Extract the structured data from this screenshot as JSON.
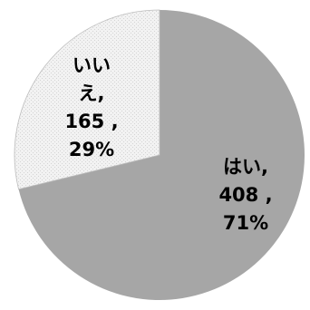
{
  "colors": {
    "slice_yes": "#a6a6a6",
    "slice_no": "#f2f2f2",
    "slice_no_dots": "#d4d4d4",
    "background": "#ffffff"
  },
  "chart_data": {
    "type": "pie",
    "title": "",
    "start_angle_deg": 0,
    "direction": "clockwise",
    "slices": [
      {
        "label": "はい",
        "value": 408,
        "percent": "71%",
        "label_lines": [
          "はい,",
          "408 ,",
          "71%"
        ],
        "fill": "solid-gray"
      },
      {
        "label": "いいえ",
        "value": 165,
        "percent": "29%",
        "label_lines": [
          "いい",
          "え,",
          "165 ,",
          "29%"
        ],
        "fill": "dotted-light"
      }
    ]
  }
}
